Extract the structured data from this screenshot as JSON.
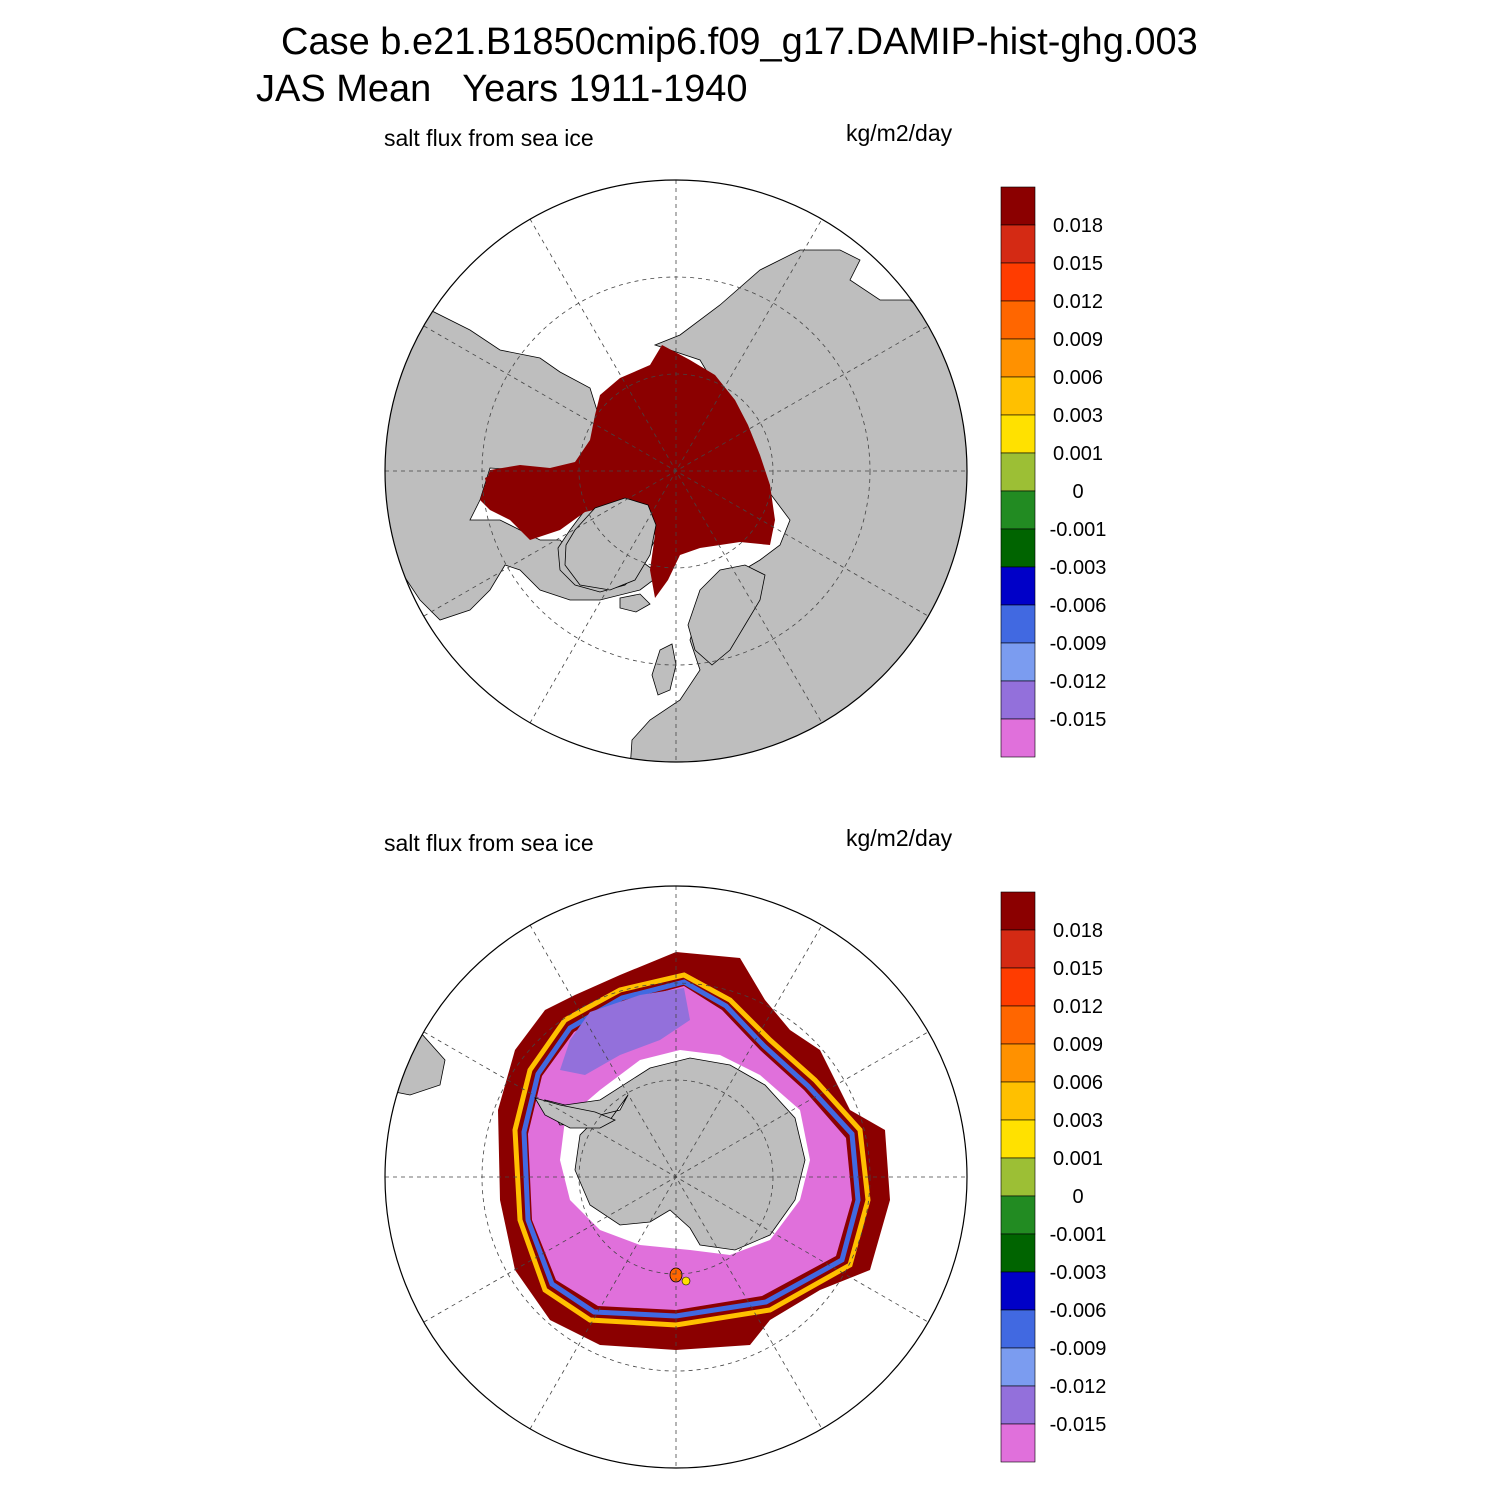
{
  "header": {
    "title_line1": "Case b.e21.B1850cmip6.f09_g17.DAMIP-hist-ghg.003",
    "title_line2": "JAS Mean   Years 1911-1940"
  },
  "panels": [
    {
      "hemisphere": "north",
      "variable_label": "salt flux from sea ice",
      "units_label": "kg/m2/day"
    },
    {
      "hemisphere": "south",
      "variable_label": "salt flux from sea ice",
      "units_label": "kg/m2/day"
    }
  ],
  "colorbar": {
    "labels": [
      "0.018",
      "0.015",
      "0.012",
      "0.009",
      "0.006",
      "0.003",
      "0.001",
      "0",
      "-0.001",
      "-0.003",
      "-0.006",
      "-0.009",
      "-0.012",
      "-0.015"
    ],
    "colors": [
      "#8b0000",
      "#d42a14",
      "#ff3c00",
      "#ff6600",
      "#ff9100",
      "#ffc000",
      "#ffe100",
      "#9cbf35",
      "#228b22",
      "#006400",
      "#0000c8",
      "#4169e1",
      "#7b9cf0",
      "#9370db",
      "#e070db"
    ]
  },
  "map_colors": {
    "land": "#bebebe",
    "ocean": "#ffffff",
    "high_flux": "#8b0000",
    "low_flux": "#e070db"
  }
}
